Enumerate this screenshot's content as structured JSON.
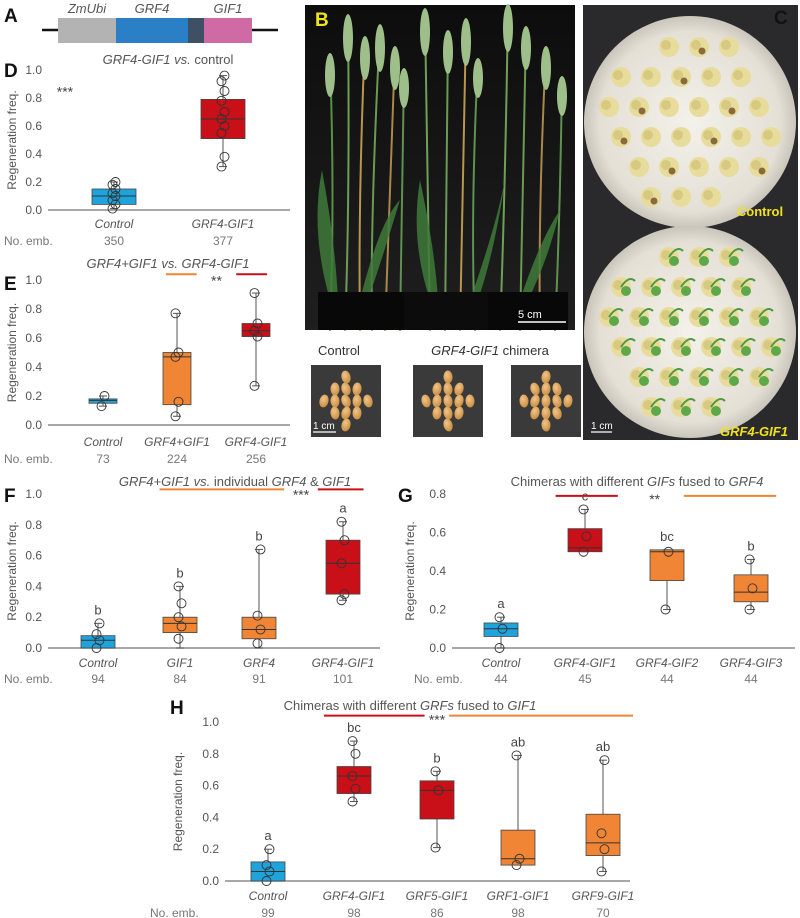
{
  "panels": {
    "A": {
      "letter": "A",
      "segments": [
        "ZmUbi",
        "GRF4",
        "GIF1"
      ]
    },
    "B": {
      "letter": "B",
      "scale": "5 cm"
    },
    "C": {
      "letter": "C",
      "scale": "1 cm",
      "label_top": "Control",
      "label_bottom": "GRF4-GIF1"
    },
    "seeds": {
      "label_control": "Control",
      "label_chimera_it": "GRF4-GIF1",
      "label_chimera_rest": " chimera",
      "scale": "1 cm"
    }
  },
  "colors": {
    "blue": "#1fa3dc",
    "orange": "#ef8535",
    "red": "#c90f17",
    "grey_axis": "#8c8c8c"
  },
  "common": {
    "ylabel": "Regeneration freq.",
    "nemb_label": "No. emb."
  },
  "chart_data": [
    {
      "id": "D",
      "letter": "D",
      "type": "box",
      "title_parts": [
        {
          "t": "GRF4-GIF1",
          "it": true
        },
        {
          "t": " vs.",
          "it": true
        },
        {
          "t": " control",
          "it": false
        }
      ],
      "ylim": [
        0,
        1
      ],
      "yticks": [
        "0.0",
        "0.2",
        "0.4",
        "0.6",
        "0.8",
        "1.0"
      ],
      "categories": [
        "Control",
        "GRF4-GIF1"
      ],
      "n_embryos": [
        "350",
        "377"
      ],
      "colors": [
        "blue",
        "red"
      ],
      "boxes": [
        {
          "min": 0.01,
          "q1": 0.04,
          "median": 0.1,
          "q3": 0.15,
          "max": 0.2,
          "points": [
            0.01,
            0.04,
            0.07,
            0.1,
            0.12,
            0.15,
            0.18,
            0.2
          ]
        },
        {
          "min": 0.31,
          "q1": 0.51,
          "median": 0.65,
          "q3": 0.79,
          "max": 0.96,
          "points": [
            0.31,
            0.38,
            0.55,
            0.6,
            0.65,
            0.7,
            0.78,
            0.85,
            0.92,
            0.96
          ]
        }
      ],
      "letters": [],
      "sig": {
        "text": "***",
        "x": 0.55,
        "y": 0.84
      },
      "bars": []
    },
    {
      "id": "E",
      "letter": "E",
      "type": "box",
      "title_parts": [
        {
          "t": "GRF4+GIF1 vs. GRF4-GIF1",
          "it": true
        }
      ],
      "ylim": [
        0,
        1
      ],
      "yticks": [
        "0.0",
        "0.2",
        "0.4",
        "0.6",
        "0.8",
        "1.0"
      ],
      "categories": [
        "Control",
        "GRF4+GIF1",
        "GRF4-GIF1"
      ],
      "n_embryos": [
        "73",
        "224",
        "256"
      ],
      "colors": [
        "blue",
        "orange",
        "red"
      ],
      "boxes": [
        {
          "min": 0.13,
          "q1": 0.15,
          "median": 0.17,
          "q3": 0.18,
          "max": 0.2,
          "points": [
            0.13,
            0.2
          ]
        },
        {
          "min": 0.06,
          "q1": 0.14,
          "median": 0.47,
          "q3": 0.5,
          "max": 0.77,
          "points": [
            0.06,
            0.16,
            0.47,
            0.5,
            0.77
          ]
        },
        {
          "min": 0.27,
          "q1": 0.61,
          "median": 0.65,
          "q3": 0.7,
          "max": 0.91,
          "points": [
            0.27,
            0.61,
            0.65,
            0.7,
            0.91
          ]
        }
      ],
      "letters": [],
      "sig": {
        "text": "**",
        "x": 2.5,
        "y": 0.99
      },
      "bars": [
        {
          "from": 1.85,
          "to": 2.25,
          "y": 1.04,
          "color": "orange"
        },
        {
          "from": 2.75,
          "to": 3.15,
          "y": 1.04,
          "color": "red"
        }
      ]
    },
    {
      "id": "F",
      "letter": "F",
      "type": "box",
      "title_parts": [
        {
          "t": "GRF4+GIF1 vs.",
          "it": true
        },
        {
          "t": " individual ",
          "it": false
        },
        {
          "t": "GRF4",
          "it": true
        },
        {
          "t": " & ",
          "it": false
        },
        {
          "t": "GIF1",
          "it": true
        }
      ],
      "ylim": [
        0,
        1
      ],
      "yticks": [
        "0.0",
        "0.2",
        "0.4",
        "0.6",
        "0.8",
        "1.0"
      ],
      "categories": [
        "Control",
        "GIF1",
        "GRF4",
        "GRF4-GIF1"
      ],
      "n_embryos": [
        "94",
        "84",
        "91",
        "101"
      ],
      "colors": [
        "blue",
        "orange",
        "orange",
        "red"
      ],
      "boxes": [
        {
          "min": 0.0,
          "q1": 0.0,
          "median": 0.05,
          "q3": 0.08,
          "max": 0.16,
          "points": [
            0.0,
            0.05,
            0.09,
            0.16
          ]
        },
        {
          "min": 0.0,
          "q1": 0.1,
          "median": 0.16,
          "q3": 0.2,
          "max": 0.4,
          "points": [
            0.06,
            0.14,
            0.2,
            0.29,
            0.4
          ]
        },
        {
          "min": 0.0,
          "q1": 0.06,
          "median": 0.12,
          "q3": 0.2,
          "max": 0.64,
          "points": [
            0.03,
            0.12,
            0.21,
            0.64
          ]
        },
        {
          "min": 0.31,
          "q1": 0.35,
          "median": 0.55,
          "q3": 0.7,
          "max": 0.82,
          "points": [
            0.31,
            0.35,
            0.55,
            0.7,
            0.82
          ]
        }
      ],
      "letters": [
        "b",
        "b",
        "b",
        "a"
      ],
      "sig": {
        "text": "***",
        "x": 3.5,
        "y": 0.99
      },
      "bars": [
        {
          "from": 1.75,
          "to": 3.3,
          "y": 1.03,
          "color": "orange"
        },
        {
          "from": 3.7,
          "to": 4.25,
          "y": 1.03,
          "color": "red"
        }
      ]
    },
    {
      "id": "G",
      "letter": "G",
      "type": "box",
      "title_parts": [
        {
          "t": "Chimeras with different ",
          "it": false
        },
        {
          "t": "GIFs",
          "it": true
        },
        {
          "t": " fused to ",
          "it": false
        },
        {
          "t": "GRF4",
          "it": true
        }
      ],
      "ylim": [
        0,
        0.8
      ],
      "yticks": [
        "0.0",
        "0.2",
        "0.4",
        "0.6",
        "0.8"
      ],
      "categories": [
        "Control",
        "GRF4-GIF1",
        "GRF4-GIF2",
        "GRF4-GIF3"
      ],
      "n_embryos": [
        "44",
        "45",
        "44",
        "44"
      ],
      "colors": [
        "blue",
        "red",
        "orange",
        "orange"
      ],
      "boxes": [
        {
          "min": 0.0,
          "q1": 0.06,
          "median": 0.1,
          "q3": 0.13,
          "max": 0.16,
          "points": [
            0.0,
            0.1,
            0.16
          ]
        },
        {
          "min": 0.5,
          "q1": 0.5,
          "median": 0.52,
          "q3": 0.62,
          "max": 0.72,
          "points": [
            0.5,
            0.58,
            0.72
          ]
        },
        {
          "min": 0.2,
          "q1": 0.35,
          "median": 0.5,
          "q3": 0.51,
          "max": 0.51,
          "points": [
            0.2,
            0.5
          ]
        },
        {
          "min": 0.2,
          "q1": 0.24,
          "median": 0.29,
          "q3": 0.38,
          "max": 0.46,
          "points": [
            0.2,
            0.31,
            0.46
          ]
        }
      ],
      "letters": [
        "a",
        "c",
        "bc",
        "b"
      ],
      "sig": {
        "text": "**",
        "x": 2.85,
        "y": 0.77
      },
      "bars": [
        {
          "from": 1.65,
          "to": 2.4,
          "y": 0.79,
          "color": "red"
        },
        {
          "from": 3.2,
          "to": 4.3,
          "y": 0.79,
          "color": "orange"
        }
      ]
    },
    {
      "id": "H",
      "letter": "H",
      "type": "box",
      "title_parts": [
        {
          "t": "Chimeras with different ",
          "it": false
        },
        {
          "t": "GRFs",
          "it": true
        },
        {
          "t": " fused to ",
          "it": false
        },
        {
          "t": "GIF1",
          "it": true
        }
      ],
      "ylim": [
        0,
        1
      ],
      "yticks": [
        "0.0",
        "0.2",
        "0.4",
        "0.6",
        "0.8",
        "1.0"
      ],
      "categories": [
        "Control",
        "GRF4-GIF1",
        "GRF5-GIF1",
        "GRF1-GIF1",
        "GRF9-GIF1"
      ],
      "n_embryos": [
        "99",
        "98",
        "86",
        "98",
        "70"
      ],
      "colors": [
        "blue",
        "red",
        "red",
        "orange",
        "orange"
      ],
      "boxes": [
        {
          "min": 0.0,
          "q1": 0.0,
          "median": 0.06,
          "q3": 0.12,
          "max": 0.2,
          "points": [
            0.0,
            0.06,
            0.1,
            0.2
          ]
        },
        {
          "min": 0.5,
          "q1": 0.55,
          "median": 0.66,
          "q3": 0.72,
          "max": 0.88,
          "points": [
            0.5,
            0.58,
            0.66,
            0.8,
            0.88
          ]
        },
        {
          "min": 0.21,
          "q1": 0.39,
          "median": 0.57,
          "q3": 0.63,
          "max": 0.69,
          "points": [
            0.21,
            0.57,
            0.69
          ]
        },
        {
          "min": 0.1,
          "q1": 0.1,
          "median": 0.14,
          "q3": 0.32,
          "max": 0.79,
          "points": [
            0.1,
            0.14,
            0.79
          ]
        },
        {
          "min": 0.06,
          "q1": 0.16,
          "median": 0.24,
          "q3": 0.42,
          "max": 0.76,
          "points": [
            0.06,
            0.2,
            0.3,
            0.76
          ]
        }
      ],
      "letters": [
        "a",
        "bc",
        "b",
        "ab",
        "ab"
      ],
      "sig": {
        "text": "***",
        "x": 3.0,
        "y": 1.01
      },
      "bars": [
        {
          "from": 1.65,
          "to": 2.85,
          "y": 1.04,
          "color": "red"
        },
        {
          "from": 3.15,
          "to": 5.35,
          "y": 1.04,
          "color": "orange"
        }
      ]
    }
  ]
}
